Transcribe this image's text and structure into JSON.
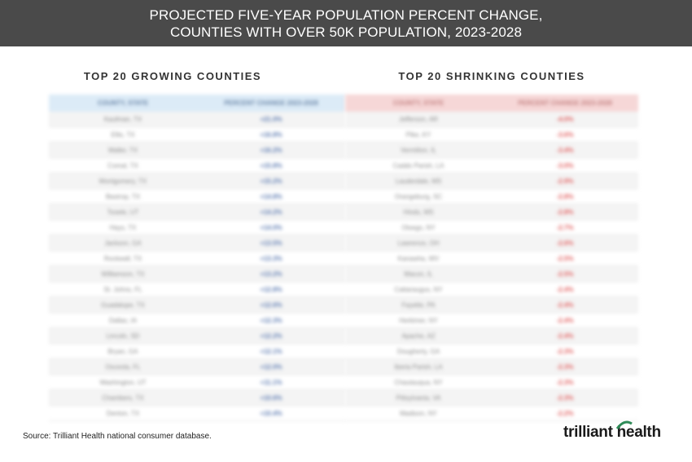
{
  "header": {
    "line1": "PROJECTED FIVE-YEAR POPULATION PERCENT CHANGE,",
    "line2": "COUNTIES WITH OVER 50K POPULATION, 2023-2028"
  },
  "chart_data": [
    {
      "type": "table",
      "title": "TOP 20 GROWING COUNTIES",
      "columns": [
        "COUNTY, STATE",
        "PERCENT CHANGE 2023-2028"
      ],
      "rows": [
        [
          "Kaufman, TX",
          "+21.0%"
        ],
        [
          "Ellis, TX",
          "+16.8%"
        ],
        [
          "Waller, TX",
          "+16.2%"
        ],
        [
          "Comal, TX",
          "+15.8%"
        ],
        [
          "Montgomery, TX",
          "+15.2%"
        ],
        [
          "Bastrop, TX",
          "+14.8%"
        ],
        [
          "Tooele, UT",
          "+14.2%"
        ],
        [
          "Hays, TX",
          "+14.0%"
        ],
        [
          "Jackson, GA",
          "+13.5%"
        ],
        [
          "Rockwall, TX",
          "+13.3%"
        ],
        [
          "Williamson, TX",
          "+13.2%"
        ],
        [
          "St. Johns, FL",
          "+12.8%"
        ],
        [
          "Guadalupe, TX",
          "+12.6%"
        ],
        [
          "Dallas, IA",
          "+12.3%"
        ],
        [
          "Lincoln, SD",
          "+12.2%"
        ],
        [
          "Bryan, GA",
          "+12.1%"
        ],
        [
          "Osceola, FL",
          "+12.0%"
        ],
        [
          "Washington, UT",
          "+11.1%"
        ],
        [
          "Chambers, TX",
          "+10.6%"
        ],
        [
          "Denton, TX",
          "+10.4%"
        ]
      ]
    },
    {
      "type": "table",
      "title": "TOP 20 SHRINKING COUNTIES",
      "columns": [
        "COUNTY, STATE",
        "PERCENT CHANGE 2023-2028"
      ],
      "rows": [
        [
          "Jefferson, AR",
          "-4.0%"
        ],
        [
          "Pike, KY",
          "-3.6%"
        ],
        [
          "Vermilion, IL",
          "-3.4%"
        ],
        [
          "Caddo Parish, LA",
          "-3.0%"
        ],
        [
          "Lauderdale, MS",
          "-2.9%"
        ],
        [
          "Orangeburg, SC",
          "-2.8%"
        ],
        [
          "Hinds, MS",
          "-2.8%"
        ],
        [
          "Otsego, NY",
          "-2.7%"
        ],
        [
          "Lawrence, OH",
          "-2.6%"
        ],
        [
          "Kanawha, WV",
          "-2.5%"
        ],
        [
          "Macon, IL",
          "-2.5%"
        ],
        [
          "Cattaraugus, NY",
          "-2.4%"
        ],
        [
          "Fayette, PA",
          "-2.4%"
        ],
        [
          "Herkimer, NY",
          "-2.4%"
        ],
        [
          "Apache, AZ",
          "-2.4%"
        ],
        [
          "Dougherty, GA",
          "-2.3%"
        ],
        [
          "Iberia Parish, LA",
          "-2.3%"
        ],
        [
          "Chautauqua, NY",
          "-2.3%"
        ],
        [
          "Pittsylvania, VA",
          "-2.3%"
        ],
        [
          "Madison, NY",
          "-2.2%"
        ]
      ]
    }
  ],
  "footer": {
    "source": "Source: Trilliant Health national consumer database.",
    "logo": "trilliant health"
  },
  "colors": {
    "header_bg": "#4a4a4a",
    "growing_header": "#dcebf7",
    "shrinking_header": "#f6d7d7",
    "growing_value": "#5c7ab0",
    "shrinking_value": "#e05a5a",
    "logo_arc": "#2e8b57"
  }
}
